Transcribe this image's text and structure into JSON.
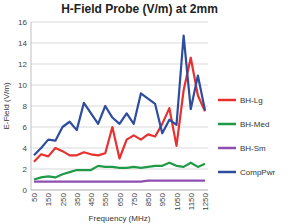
{
  "chart_data": {
    "type": "line",
    "title": "H-Field Probe (V/m) at 2mm",
    "x_label": "Frequency (MHz)",
    "y_label": "E-Field (V/m)",
    "categories": [
      "50",
      null,
      "150",
      null,
      "250",
      null,
      "350",
      null,
      "450",
      null,
      "550",
      null,
      "650",
      null,
      "750",
      null,
      "850",
      null,
      "950",
      null,
      "1050",
      null,
      "1150",
      null,
      "1250"
    ],
    "series": [
      {
        "name": "BH-Lg",
        "color": "#e8312f",
        "values": [
          2.7,
          3.4,
          3.2,
          4.0,
          3.7,
          3.3,
          3.3,
          3.6,
          3.4,
          3.3,
          3.5,
          6.0,
          3.0,
          4.8,
          5.2,
          4.8,
          5.3,
          5.1,
          6.3,
          7.8,
          4.2,
          9.5,
          12.6,
          9.0,
          7.5
        ]
      },
      {
        "name": "BH-Med",
        "color": "#1f9a48",
        "values": [
          1.0,
          1.2,
          1.3,
          1.2,
          1.5,
          1.7,
          1.9,
          1.9,
          1.9,
          2.3,
          2.2,
          2.2,
          2.1,
          2.1,
          2.2,
          2.1,
          2.2,
          2.3,
          2.3,
          2.6,
          2.3,
          2.2,
          2.6,
          2.2,
          2.5
        ]
      },
      {
        "name": "BH-Sm",
        "color": "#8e4fb0",
        "values": [
          0.8,
          0.8,
          0.8,
          0.8,
          0.8,
          0.8,
          0.8,
          0.8,
          0.8,
          0.8,
          0.8,
          0.8,
          0.8,
          0.8,
          0.8,
          0.8,
          0.9,
          0.9,
          0.9,
          0.9,
          0.9,
          0.9,
          0.9,
          0.9,
          0.9
        ]
      },
      {
        "name": "CompPwr",
        "color": "#2e4d9e",
        "values": [
          3.3,
          4.0,
          4.8,
          4.7,
          6.0,
          6.5,
          5.7,
          8.3,
          7.3,
          6.3,
          8.0,
          6.9,
          6.3,
          7.3,
          6.3,
          9.2,
          8.7,
          8.2,
          5.4,
          6.7,
          6.2,
          14.7,
          7.7,
          10.9,
          7.6
        ]
      }
    ],
    "ylim": [
      0,
      16
    ],
    "yticks": [
      0,
      2,
      4,
      6,
      8,
      10,
      12,
      14,
      16
    ],
    "grid": true,
    "legend": "right"
  }
}
